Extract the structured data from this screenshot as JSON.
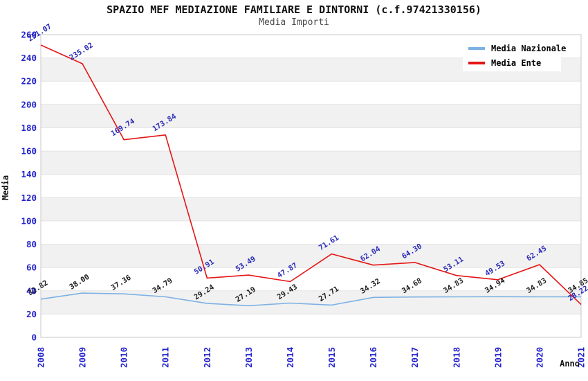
{
  "chart_data": {
    "type": "line",
    "title": "SPAZIO MEF MEDIAZIONE FAMILIARE E DINTORNI (c.f.97421330156)",
    "subtitle": "Media Importi",
    "xlabel": "Anno",
    "ylabel": "Media",
    "categories": [
      "2008",
      "2009",
      "2010",
      "2011",
      "2012",
      "2013",
      "2014",
      "2015",
      "2016",
      "2017",
      "2018",
      "2019",
      "2020",
      "2021"
    ],
    "ylim": [
      0,
      260
    ],
    "ytick_step": 20,
    "grid": "horizontal-alternating-bands",
    "legend_position": "top-right",
    "series": [
      {
        "name": "Media Nazionale",
        "color": "#7db1e3",
        "label_color": "#1c1c1c",
        "values": [
          32.82,
          38.0,
          37.36,
          34.79,
          29.24,
          27.19,
          29.43,
          27.71,
          34.32,
          34.68,
          34.83,
          34.94,
          34.83,
          34.85
        ],
        "point_labels": [
          "32.82",
          "38.00",
          "37.36",
          "34.79",
          "29.24",
          "27.19",
          "29.43",
          "27.71",
          "34.32",
          "34.68",
          "34.83",
          "34.94",
          "34.83",
          "34.85"
        ]
      },
      {
        "name": "Media Ente",
        "color": "#e51515",
        "label_color": "#2c2cb8",
        "values": [
          251.07,
          235.02,
          169.74,
          173.84,
          50.91,
          53.49,
          47.87,
          71.61,
          62.04,
          64.3,
          53.11,
          49.53,
          62.45,
          28.22
        ],
        "point_labels": [
          "251.07",
          "235.02",
          "169.74",
          "173.84",
          "50.91",
          "53.49",
          "47.87",
          "71.61",
          "62.04",
          "64.30",
          "53.11",
          "49.53",
          "62.45",
          "28.22"
        ]
      }
    ],
    "colors": {
      "tick_label": "#2323cc",
      "band": "#f1f1f1",
      "gridline": "#e4e4e4",
      "plot_border": "#c9c9c9",
      "axis_title": "#111111"
    }
  }
}
